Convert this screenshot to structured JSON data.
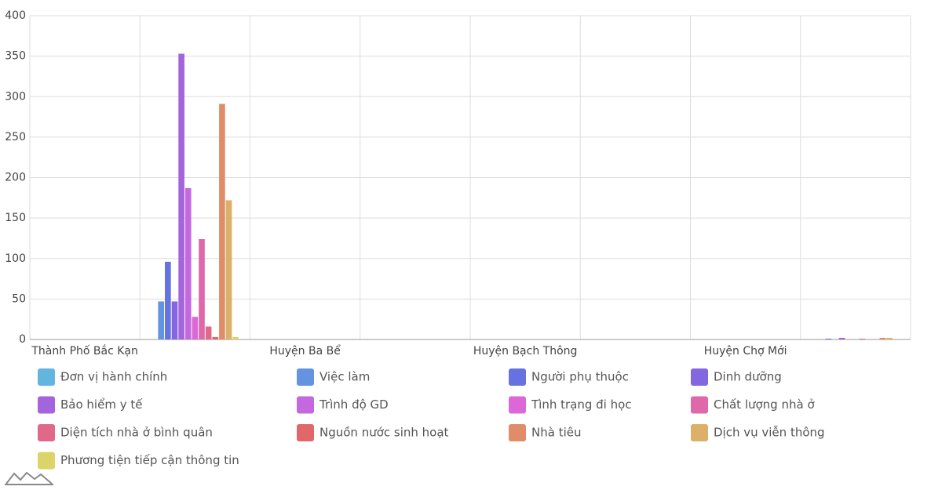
{
  "chart_data": {
    "type": "bar",
    "categories": [
      "Thành Phố Bắc Kạn",
      null,
      "Huyện Ba Bể",
      null,
      "Huyện Bạch Thông",
      null,
      "Huyện Chợ Mới",
      null
    ],
    "series": [
      {
        "name": "Đơn vị hành chính",
        "color": "#62b5dd",
        "values": [
          0,
          0,
          0,
          0,
          0,
          0,
          0,
          0
        ]
      },
      {
        "name": "Việc làm",
        "color": "#6494e0",
        "values": [
          0,
          47,
          0,
          0,
          0,
          0,
          0,
          0
        ]
      },
      {
        "name": "Người phụ thuộc",
        "color": "#6672e0",
        "values": [
          0,
          96,
          0,
          0,
          0,
          0,
          0,
          1
        ]
      },
      {
        "name": "Dinh dưỡng",
        "color": "#8366e0",
        "values": [
          0,
          47,
          0,
          0,
          0,
          0,
          0,
          0
        ]
      },
      {
        "name": "Bảo hiểm y tế",
        "color": "#a464dc",
        "values": [
          0,
          353,
          0,
          0,
          0,
          0,
          0,
          2
        ]
      },
      {
        "name": "Trình độ GD",
        "color": "#c468e0",
        "values": [
          0,
          187,
          0,
          0,
          0,
          0,
          0,
          0
        ]
      },
      {
        "name": "Tình trạng đi học",
        "color": "#dc68d8",
        "values": [
          0,
          28,
          0,
          0,
          0,
          0,
          0,
          0
        ]
      },
      {
        "name": "Chất lượng nhà ở",
        "color": "#de68aa",
        "values": [
          0,
          124,
          0,
          0,
          0,
          0,
          0,
          1
        ]
      },
      {
        "name": "Diện tích nhà ở bình quân",
        "color": "#e06888",
        "values": [
          0,
          16,
          0,
          0,
          0,
          0,
          0,
          0
        ]
      },
      {
        "name": "Nguồn nước sinh hoạt",
        "color": "#e06868",
        "values": [
          0,
          3,
          0,
          0,
          0,
          0,
          0,
          0
        ]
      },
      {
        "name": "Nhà tiêu",
        "color": "#e08c68",
        "values": [
          0,
          291,
          0,
          0,
          0,
          0,
          0,
          2
        ]
      },
      {
        "name": "Dịch vụ viễn thông",
        "color": "#dcb068",
        "values": [
          0,
          172,
          0,
          0,
          0,
          0,
          0,
          2
        ]
      },
      {
        "name": "Phương tiện tiếp cận thông tin",
        "color": "#dcd468",
        "values": [
          0,
          3,
          0,
          0,
          0,
          0,
          0,
          0
        ]
      }
    ],
    "ylim": [
      0,
      400
    ],
    "yticks": [
      0,
      50,
      100,
      150,
      200,
      250,
      300,
      350,
      400
    ],
    "grid": true
  }
}
